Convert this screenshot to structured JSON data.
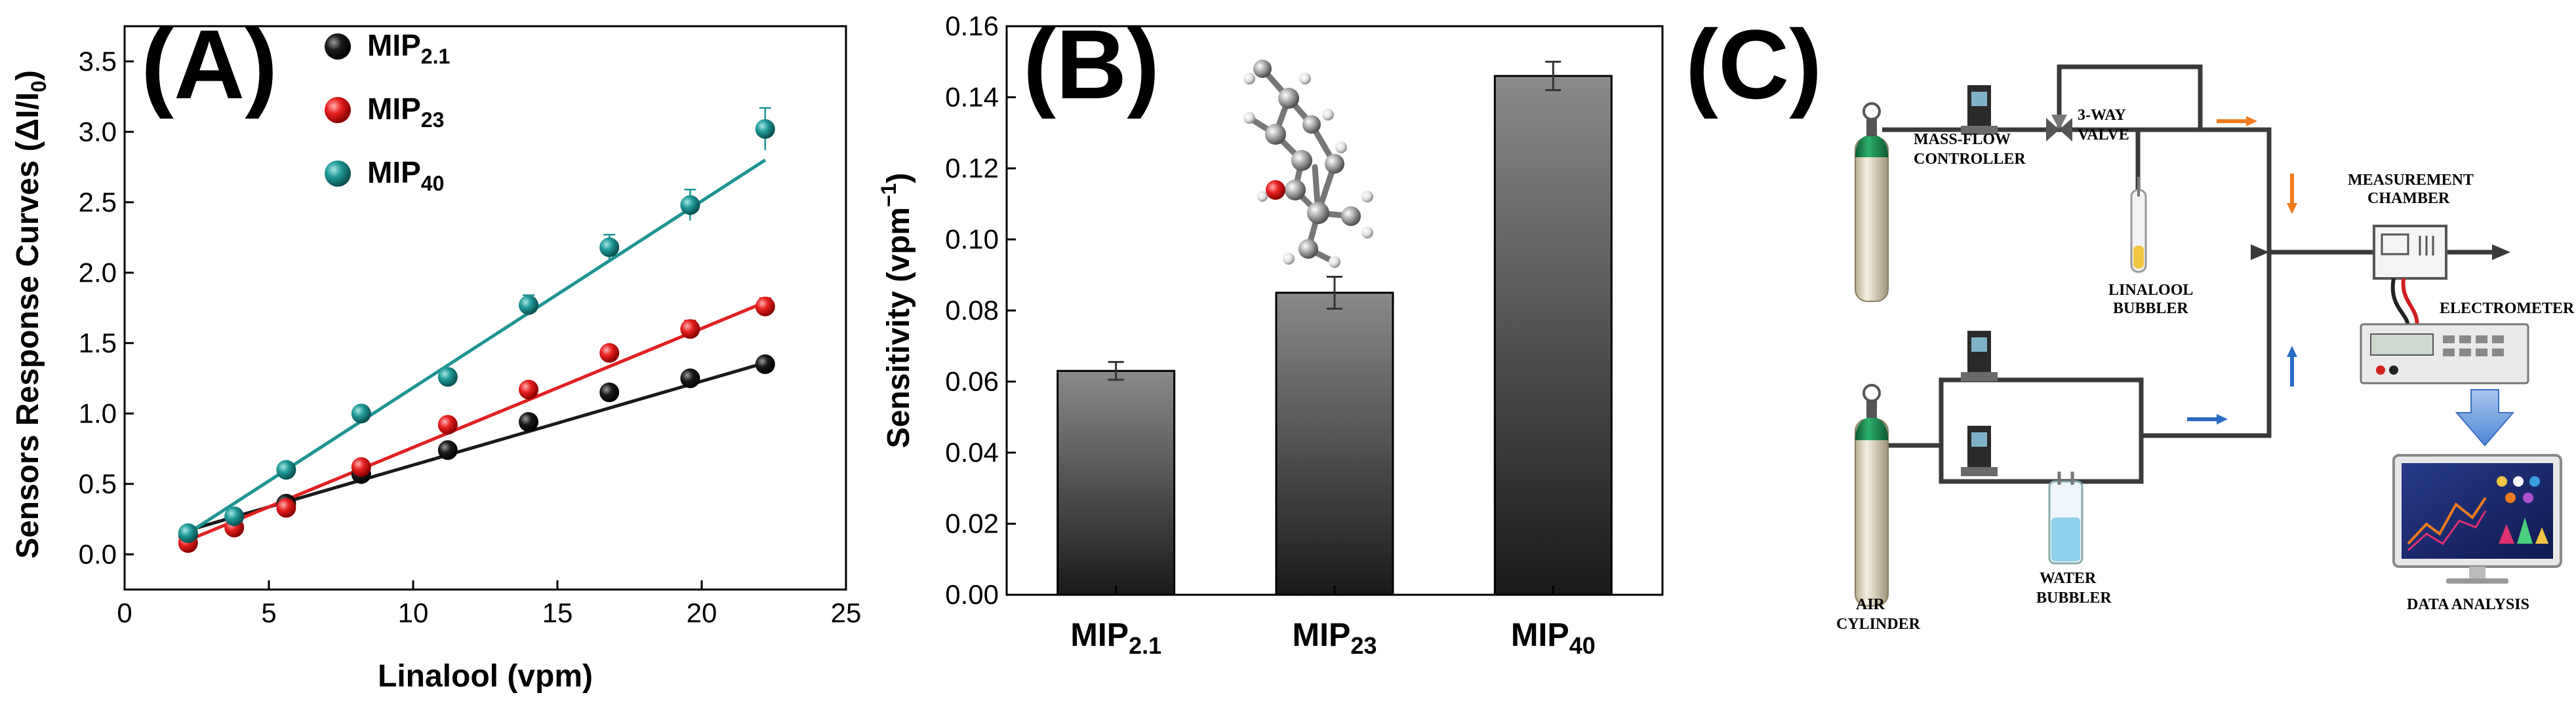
{
  "panel_labels": {
    "a": "(A)",
    "b": "(B)",
    "c": "(C)"
  },
  "chart_data": [
    {
      "type": "scatter",
      "panel": "A",
      "xlabel": "Linalool (vpm)",
      "ylabel_main": "Sensors Response Curves (ΔI/I",
      "ylabel_sub": "0",
      "ylabel_end": ")",
      "xlim": [
        0,
        25
      ],
      "ylim": [
        -0.25,
        3.75
      ],
      "xticks": [
        0,
        5,
        10,
        15,
        20,
        25
      ],
      "yticks": [
        0.0,
        0.5,
        1.0,
        1.5,
        2.0,
        2.5,
        3.0,
        3.5
      ],
      "ytick_labels": [
        "0.0",
        "0.5",
        "1.0",
        "1.5",
        "2.0",
        "2.5",
        "3.0",
        "3.5"
      ],
      "legend_position": "top-left",
      "series": [
        {
          "name": "MIP",
          "sub": "2.1",
          "color": "#1a1a1a",
          "x": [
            2.2,
            5.6,
            8.2,
            11.2,
            14.0,
            16.8,
            19.6,
            22.2
          ],
          "y": [
            0.14,
            0.36,
            0.57,
            0.74,
            0.94,
            1.15,
            1.25,
            1.35
          ],
          "err": [
            0.02,
            0.02,
            0.02,
            0.03,
            0.03,
            0.03,
            0.04,
            0.04
          ],
          "fit": [
            [
              2.2,
              0.17
            ],
            [
              22.2,
              1.36
            ]
          ]
        },
        {
          "name": "MIP",
          "sub": "23",
          "color": "#e02020",
          "x": [
            2.2,
            3.8,
            5.6,
            8.2,
            11.2,
            14.0,
            16.8,
            19.6,
            22.2
          ],
          "y": [
            0.08,
            0.19,
            0.33,
            0.62,
            0.92,
            1.17,
            1.43,
            1.6,
            1.76
          ],
          "err": [
            0.02,
            0.02,
            0.03,
            0.03,
            0.03,
            0.04,
            0.04,
            0.06,
            0.06
          ],
          "fit": [
            [
              2.2,
              0.1
            ],
            [
              22.2,
              1.79
            ]
          ]
        },
        {
          "name": "MIP",
          "sub": "40",
          "color": "#1f9494",
          "x": [
            2.2,
            3.8,
            5.6,
            8.2,
            11.2,
            14.0,
            16.8,
            19.6,
            22.2
          ],
          "y": [
            0.15,
            0.27,
            0.6,
            1.0,
            1.26,
            1.77,
            2.18,
            2.48,
            3.02
          ],
          "err": [
            0.03,
            0.03,
            0.04,
            0.04,
            0.05,
            0.07,
            0.09,
            0.11,
            0.15
          ],
          "fit": [
            [
              2.2,
              0.15
            ],
            [
              22.2,
              2.8
            ]
          ]
        }
      ]
    },
    {
      "type": "bar",
      "panel": "B",
      "ylabel_main": "Sensitivity (vpm",
      "ylabel_sup": "−1",
      "ylabel_end": ")",
      "ylim": [
        0,
        0.16
      ],
      "yticks": [
        0.0,
        0.02,
        0.04,
        0.06,
        0.08,
        0.1,
        0.12,
        0.14,
        0.16
      ],
      "ytick_labels": [
        "0.00",
        "0.02",
        "0.04",
        "0.06",
        "0.08",
        "0.10",
        "0.12",
        "0.14",
        "0.16"
      ],
      "categories": [
        {
          "main": "MIP",
          "sub": "2.1"
        },
        {
          "main": "MIP",
          "sub": "23"
        },
        {
          "main": "MIP",
          "sub": "40"
        }
      ],
      "values": [
        0.063,
        0.085,
        0.146
      ],
      "errors": [
        0.0025,
        0.0045,
        0.004
      ],
      "bar_color_top": "#8a8a8a",
      "bar_color_bottom": "#1a1a1a"
    }
  ],
  "diagram": {
    "mass_flow": "MASS-FLOW",
    "controller": "CONTROLLER",
    "valve_line1": "3-WAY",
    "valve_line2": "VALVE",
    "linalool": "LINALOOL",
    "bubbler": "BUBBLER",
    "measurement": "MEASUREMENT",
    "chamber": "CHAMBER",
    "electrometer": "ELECTROMETER",
    "air": "AIR",
    "cylinder": "CYLINDER",
    "water": "WATER",
    "water_bubbler": "BUBBLER",
    "data_analysis": "DATA ANALYSIS",
    "colors": {
      "pipe": "#3a3a3a",
      "orange_arrow": "#f07b1e",
      "blue_arrow": "#2a6bc4",
      "cylinder_green": "#1c8c50",
      "screen": "#1a2a70"
    }
  }
}
